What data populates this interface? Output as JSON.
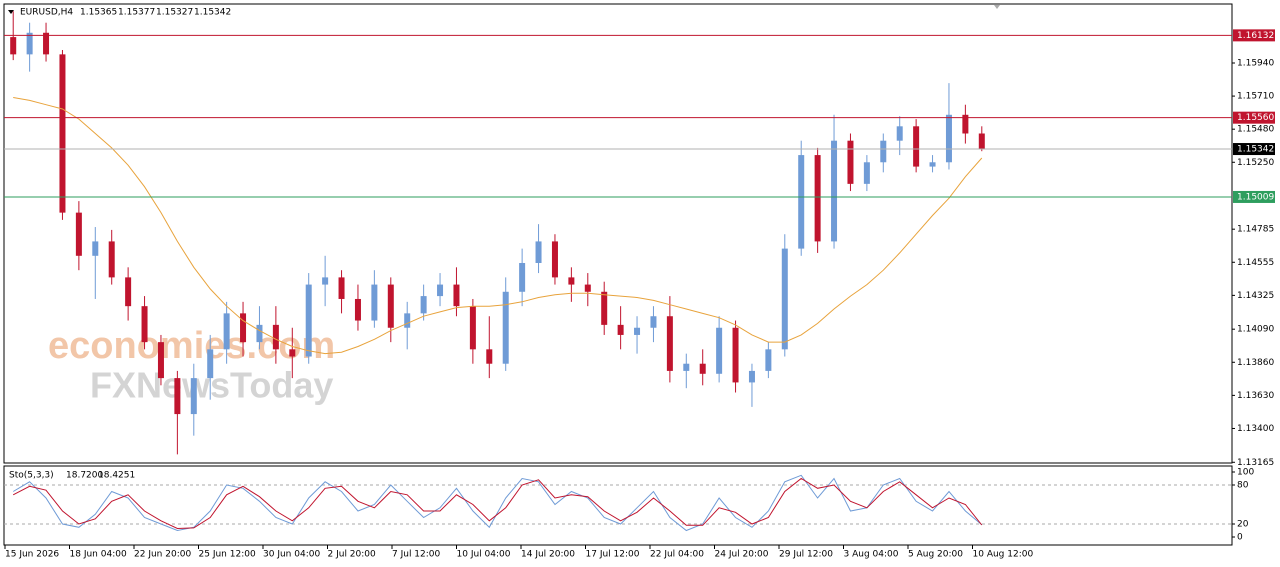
{
  "chart_data": {
    "type": "candlestick",
    "symbol": "EURUSD,H4",
    "quote": [
      1.15365,
      1.15377,
      1.15327,
      1.15342
    ],
    "watermark": [
      "economies.com",
      "FXNewsToday"
    ],
    "ylim": [
      1.1316,
      1.1635
    ],
    "yticks": [
      {
        "value": 1.1594,
        "label": "1.15940"
      },
      {
        "value": 1.1571,
        "label": "1.15710"
      },
      {
        "value": 1.1548,
        "label": "1.15480"
      },
      {
        "value": 1.1525,
        "label": "1.15250"
      },
      1.14785,
      1.14555,
      1.14325,
      {
        "value": 1.1409,
        "label": "1.14090"
      },
      {
        "value": 1.1386,
        "label": "1.13860"
      },
      {
        "value": 1.1363,
        "label": "1.13630"
      },
      {
        "value": 1.134,
        "label": "1.13400"
      },
      1.13165
    ],
    "levels": [
      {
        "value": 1.16132,
        "color": "#c0142e"
      },
      {
        "value": {
          "value": 1.1556,
          "label": "1.15560"
        },
        "color": "#c0142e"
      },
      {
        "value": 1.15342,
        "color": "#000000"
      },
      {
        "value": 1.15009,
        "color": "#2e9e5e"
      }
    ],
    "up_color": "#6f9bd6",
    "down_color": "#c0142e",
    "xlabels": [
      "15 Jun 2026",
      "18 Jun 04:00",
      "22 Jun 20:00",
      "25 Jun 12:00",
      "30 Jun 04:00",
      "2 Jul 20:00",
      "7 Jul 12:00",
      "10 Jul 04:00",
      "14 Jul 20:00",
      "17 Jul 12:00",
      "22 Jul 04:00",
      "24 Jul 20:00",
      "29 Jul 12:00",
      "3 Aug 04:00",
      "5 Aug 20:00",
      "10 Aug 12:00"
    ],
    "candles": [
      [
        1.1612,
        1.163,
        1.1596,
        1.16
      ],
      [
        1.16,
        1.1622,
        1.1588,
        1.1615
      ],
      [
        1.1615,
        1.1622,
        1.1595,
        1.16
      ],
      [
        1.16,
        1.1603,
        1.1485,
        1.149
      ],
      [
        1.149,
        1.1498,
        1.145,
        1.146
      ],
      [
        1.146,
        1.148,
        1.143,
        1.147
      ],
      [
        1.147,
        1.1478,
        1.144,
        1.1445
      ],
      [
        1.1445,
        1.1452,
        1.1415,
        1.1425
      ],
      [
        1.1425,
        1.1432,
        1.1395,
        1.14
      ],
      [
        1.14,
        1.1405,
        1.137,
        1.1375
      ],
      [
        1.1375,
        1.138,
        1.1322,
        1.135
      ],
      [
        1.135,
        1.1385,
        1.1335,
        1.1375
      ],
      [
        1.1375,
        1.1405,
        1.136,
        1.1395
      ],
      [
        1.1395,
        1.1428,
        1.1385,
        1.142
      ],
      [
        1.142,
        1.1428,
        1.139,
        1.14
      ],
      [
        1.14,
        1.1425,
        1.1395,
        1.1412
      ],
      [
        1.1412,
        1.1425,
        1.1385,
        1.1395
      ],
      [
        1.1395,
        1.141,
        1.1375,
        1.139
      ],
      [
        1.139,
        1.1448,
        1.1385,
        1.144
      ],
      [
        1.144,
        1.146,
        1.1425,
        1.1445
      ],
      [
        1.1445,
        1.145,
        1.142,
        1.143
      ],
      [
        1.143,
        1.144,
        1.1408,
        1.1415
      ],
      [
        1.1415,
        1.145,
        1.141,
        1.144
      ],
      [
        1.144,
        1.1445,
        1.14,
        1.141
      ],
      [
        1.141,
        1.1428,
        1.1395,
        1.142
      ],
      [
        1.142,
        1.144,
        1.1415,
        1.1432
      ],
      [
        1.1432,
        1.1448,
        1.1425,
        1.144
      ],
      [
        1.144,
        1.1452,
        1.1418,
        1.1425
      ],
      [
        1.1425,
        1.143,
        1.1385,
        1.1395
      ],
      [
        1.1395,
        1.1418,
        1.1375,
        1.1385
      ],
      [
        1.1385,
        1.1445,
        1.138,
        1.1435
      ],
      [
        1.1435,
        1.1465,
        1.1425,
        1.1455
      ],
      [
        1.1455,
        1.1482,
        1.1448,
        1.147
      ],
      [
        1.147,
        1.1475,
        1.144,
        1.1445
      ],
      [
        1.1445,
        1.1452,
        1.1428,
        1.144
      ],
      [
        1.144,
        1.1448,
        1.1425,
        1.1435
      ],
      [
        1.1435,
        1.1442,
        1.1405,
        1.1412
      ],
      [
        1.1412,
        1.1425,
        1.1395,
        1.1405
      ],
      [
        1.1405,
        1.1418,
        1.1392,
        1.141
      ],
      [
        1.141,
        1.1425,
        1.14,
        1.1418
      ],
      [
        1.1418,
        1.1432,
        1.1372,
        1.138
      ],
      [
        1.138,
        1.1392,
        1.1368,
        1.1385
      ],
      [
        1.1385,
        1.1395,
        1.137,
        1.1378
      ],
      [
        1.1378,
        1.1418,
        1.1372,
        1.141
      ],
      [
        1.141,
        1.1415,
        1.1365,
        1.1372
      ],
      [
        1.1372,
        1.1385,
        1.1355,
        1.138
      ],
      [
        1.138,
        1.14,
        1.1375,
        1.1395
      ],
      [
        1.1395,
        1.1475,
        1.139,
        1.1465
      ],
      [
        1.1465,
        1.154,
        1.146,
        1.153
      ],
      [
        1.153,
        1.1535,
        1.1462,
        1.147
      ],
      [
        1.147,
        1.1558,
        1.1465,
        1.154
      ],
      [
        1.154,
        1.1545,
        1.1505,
        1.151
      ],
      [
        1.151,
        1.153,
        1.1505,
        1.1525
      ],
      [
        1.1525,
        1.1545,
        1.1518,
        1.154
      ],
      [
        1.154,
        1.1557,
        1.153,
        1.155
      ],
      [
        1.155,
        1.1555,
        1.1518,
        1.1522
      ],
      [
        1.1522,
        1.153,
        1.1518,
        1.1525
      ],
      [
        1.1525,
        1.158,
        1.152,
        1.1558
      ],
      [
        1.1558,
        1.1565,
        1.1538,
        1.1545
      ],
      [
        1.1545,
        1.155,
        1.15327,
        1.15342
      ]
    ],
    "ma": {
      "color": "#e8a33c",
      "values": [
        1.157,
        1.1568,
        1.1565,
        1.1562,
        1.1555,
        1.1545,
        1.1535,
        1.1523,
        1.1508,
        1.149,
        1.147,
        1.1452,
        1.1437,
        1.1425,
        1.1415,
        1.1408,
        1.1402,
        1.1397,
        1.1394,
        1.1392,
        1.1393,
        1.1397,
        1.1402,
        1.1408,
        1.1413,
        1.1418,
        1.1421,
        1.1424,
        1.1425,
        1.1425,
        1.1426,
        1.1428,
        1.1431,
        1.1433,
        1.1434,
        1.1434,
        1.1433,
        1.1432,
        1.1431,
        1.1429,
        1.1426,
        1.1423,
        1.142,
        1.1417,
        1.1412,
        1.1405,
        1.14,
        1.14,
        1.1405,
        1.1413,
        1.1423,
        1.1432,
        1.144,
        1.145,
        1.1462,
        1.1475,
        1.1488,
        1.15,
        1.1515,
        1.1528
      ]
    },
    "stochastic": {
      "name": "Sto(5,3,3)",
      "main_label": {
        "value": 18.72,
        "label": "18.7200"
      },
      "signal_label": 18.4251,
      "ylim": [
        0,
        100
      ],
      "yticks": [
        100,
        80,
        20,
        0
      ],
      "levels": [
        80,
        20
      ],
      "series": [
        {
          "color": "#6f9bd6",
          "values": [
            70,
            85,
            60,
            20,
            15,
            35,
            70,
            60,
            30,
            20,
            10,
            15,
            40,
            80,
            75,
            55,
            30,
            20,
            60,
            85,
            70,
            40,
            50,
            80,
            55,
            30,
            45,
            75,
            40,
            15,
            60,
            90,
            85,
            50,
            70,
            60,
            30,
            20,
            45,
            70,
            30,
            10,
            20,
            60,
            30,
            15,
            40,
            85,
            95,
            60,
            90,
            40,
            45,
            80,
            90,
            55,
            40,
            70,
            40,
            18.72
          ]
        },
        {
          "color": "#c0142e",
          "values": [
            65,
            78,
            72,
            40,
            20,
            28,
            55,
            65,
            40,
            25,
            13,
            14,
            30,
            65,
            78,
            62,
            40,
            25,
            45,
            75,
            78,
            55,
            45,
            70,
            65,
            40,
            40,
            65,
            50,
            25,
            45,
            80,
            88,
            60,
            65,
            62,
            40,
            25,
            38,
            60,
            40,
            18,
            18,
            45,
            38,
            20,
            30,
            70,
            90,
            75,
            80,
            55,
            45,
            70,
            85,
            65,
            45,
            60,
            50,
            18.4251
          ]
        }
      ]
    }
  }
}
